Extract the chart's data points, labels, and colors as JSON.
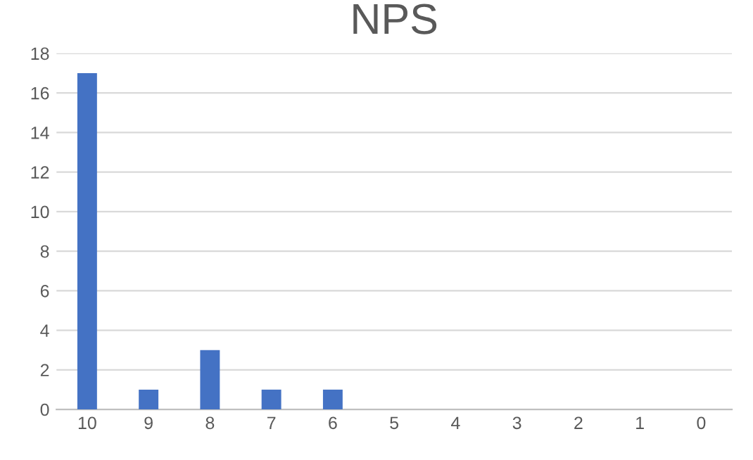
{
  "chart_data": {
    "type": "bar",
    "title": "NPS",
    "categories": [
      "10",
      "9",
      "8",
      "7",
      "6",
      "5",
      "4",
      "3",
      "2",
      "1",
      "0"
    ],
    "values": [
      17,
      1,
      3,
      1,
      1,
      0,
      0,
      0,
      0,
      0,
      0
    ],
    "color": "#4472c4",
    "ylim": [
      0,
      18
    ],
    "yticks": [
      0,
      2,
      4,
      6,
      8,
      10,
      12,
      14,
      16,
      18
    ],
    "grid": "y",
    "legend": false
  }
}
